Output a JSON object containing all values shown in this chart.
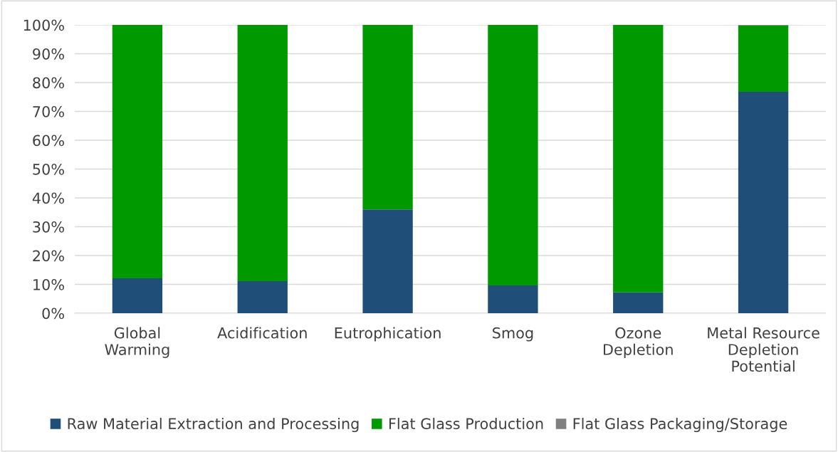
{
  "chart_data": {
    "type": "bar",
    "stacked": true,
    "categories": [
      "Global\nWarming",
      "Acidification",
      "Eutrophication",
      "Smog",
      "Ozone\nDepletion",
      "Metal Resource\nDepletion\nPotential"
    ],
    "series": [
      {
        "name": "Raw Material Extraction and Processing",
        "color": "#1f4e79",
        "values": [
          12.1,
          11.1,
          36.0,
          9.6,
          7.2,
          76.8
        ]
      },
      {
        "name": "Flat Glass Production",
        "color": "#009900",
        "values": [
          87.9,
          88.9,
          64.0,
          90.4,
          92.8,
          23.0
        ]
      },
      {
        "name": "Flat Glass Packaging/Storage",
        "color": "#808080",
        "values": [
          0,
          0,
          0,
          0,
          0,
          0.2
        ]
      }
    ],
    "ylim": [
      0,
      100
    ],
    "yticks": [
      {
        "value": 0,
        "label": "0%"
      },
      {
        "value": 10,
        "label": "10%"
      },
      {
        "value": 20,
        "label": "20%"
      },
      {
        "value": 30,
        "label": "30%"
      },
      {
        "value": 40,
        "label": "40%"
      },
      {
        "value": 50,
        "label": "50%"
      },
      {
        "value": 60,
        "label": "60%"
      },
      {
        "value": 70,
        "label": "70%"
      },
      {
        "value": 80,
        "label": "80%"
      },
      {
        "value": 90,
        "label": "90%"
      },
      {
        "value": 100,
        "label": "100%"
      }
    ],
    "grid": "y",
    "legend": "bottom"
  }
}
